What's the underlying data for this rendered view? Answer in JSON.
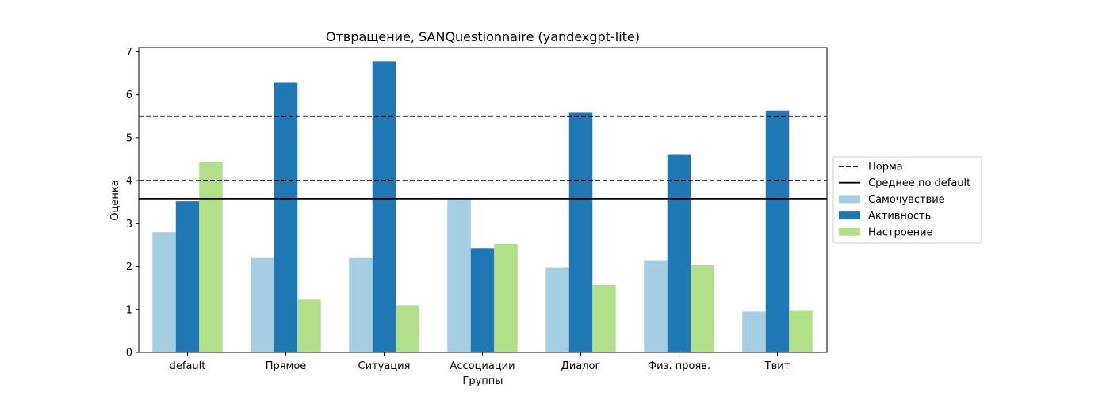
{
  "chart_data": {
    "type": "bar",
    "title": "Отвращение, SANQuestionnaire (yandexgpt-lite)",
    "xlabel": "Группы",
    "ylabel": "Оценка",
    "ylim": [
      0,
      7.1
    ],
    "yticks": [
      0,
      1,
      2,
      3,
      4,
      5,
      6,
      7
    ],
    "categories": [
      "default",
      "Прямое",
      "Ситуация",
      "Ассоциации",
      "Диалог",
      "Физ. прояв.",
      "Твит"
    ],
    "series": [
      {
        "name": "Самочувствие",
        "color": "#a6cee3",
        "values": [
          2.8,
          2.2,
          2.2,
          3.57,
          1.98,
          2.15,
          0.95
        ]
      },
      {
        "name": "Активность",
        "color": "#1f78b4",
        "values": [
          3.52,
          6.28,
          6.78,
          2.43,
          5.58,
          4.6,
          5.63
        ]
      },
      {
        "name": "Настроение",
        "color": "#b2df8a",
        "values": [
          4.43,
          1.23,
          1.1,
          2.53,
          1.57,
          2.03,
          0.97
        ]
      }
    ],
    "reference_lines": [
      {
        "name": "Норма",
        "style": "dashed",
        "color": "#000000",
        "values": [
          4.0,
          5.5
        ]
      },
      {
        "name": "Среднее по default",
        "style": "solid",
        "color": "#000000",
        "values": [
          3.58
        ]
      }
    ],
    "legend_position": "right"
  }
}
